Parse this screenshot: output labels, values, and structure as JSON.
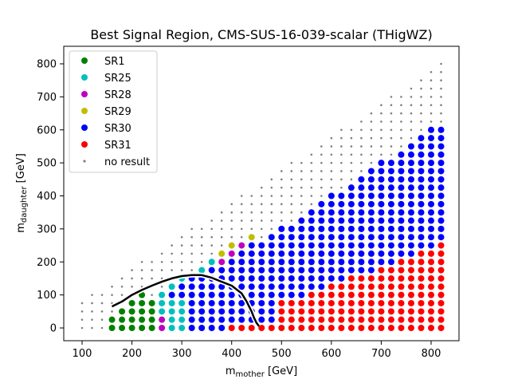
{
  "chart_data": {
    "type": "scatter",
    "title": "Best Signal Region, CMS-SUS-16-039-scalar (THigWZ)",
    "xlabel": {
      "main": "m",
      "sub": "mother",
      "unit": " [GeV]"
    },
    "ylabel": {
      "main": "m",
      "sub": "daughter",
      "unit": " [GeV]"
    },
    "xlim": [
      70,
      850
    ],
    "ylim": [
      -30,
      860
    ],
    "xticks": [
      100,
      200,
      300,
      400,
      500,
      600,
      700,
      800
    ],
    "yticks": [
      0,
      100,
      200,
      300,
      400,
      500,
      600,
      700,
      800
    ],
    "legend_position": "upper left",
    "grid": false,
    "series": [
      {
        "name": "SR1",
        "color": "#008000",
        "marker": "large-dot"
      },
      {
        "name": "SR25",
        "color": "#00bfbf",
        "marker": "large-dot"
      },
      {
        "name": "SR28",
        "color": "#bf00bf",
        "marker": "large-dot"
      },
      {
        "name": "SR29",
        "color": "#bfbf00",
        "marker": "large-dot"
      },
      {
        "name": "SR30",
        "color": "#0000ff",
        "marker": "large-dot"
      },
      {
        "name": "SR31",
        "color": "#ff0000",
        "marker": "large-dot"
      },
      {
        "name": "no result",
        "color": "#808080",
        "marker": "small-dot"
      }
    ],
    "grid_spec": {
      "x_min": 100,
      "x_max": 820,
      "x_step": 20,
      "y_min": 0,
      "y_step": 25,
      "valid_region": "daughter mass <= mother mass - 120 GeV"
    },
    "no_result_region": "points left of the exclusion contour at low mass splitting and the topmost diagonal band",
    "best_region_layout": {
      "SR1": "upper diagonal band, and low-mass region m_mother 160-240",
      "SR25": "mid band at m_mother 240-500",
      "SR28": "small islands at m_mother 240-400 and 740-800",
      "SR29": "band at m_mother 360-540",
      "SR30": "bulk interior, m_mother 300-820",
      "SR31": "lower-right region, m_mother 420-820 and low daughter mass"
    },
    "exclusion_contour": {
      "color": "#000000",
      "x": [
        160,
        180,
        200,
        220,
        240,
        260,
        280,
        300,
        320,
        340,
        360,
        380,
        400,
        420,
        430,
        440,
        445,
        450,
        455
      ],
      "y": [
        65,
        80,
        100,
        115,
        128,
        140,
        150,
        157,
        160,
        160,
        152,
        140,
        128,
        105,
        80,
        50,
        30,
        15,
        5
      ]
    }
  }
}
